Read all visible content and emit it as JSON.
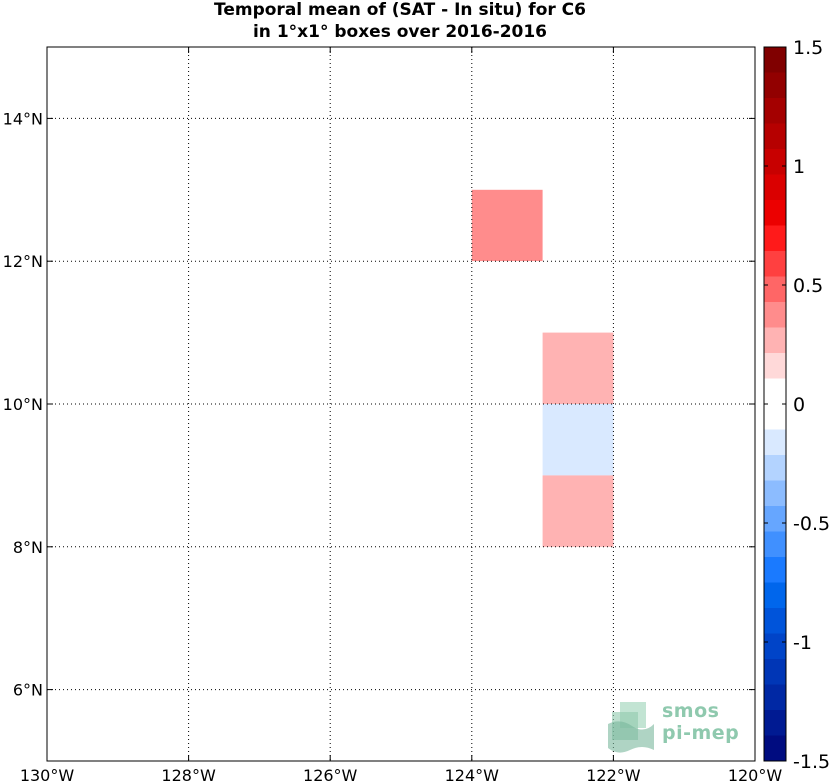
{
  "chart_data": {
    "type": "heatmap",
    "title_line1": "Temporal mean of (SAT - In situ) for C6",
    "title_line2": "in 1°x1° boxes over 2016-2016",
    "xlim": [
      -130,
      -120
    ],
    "ylim": [
      5,
      15
    ],
    "x_ticks": [
      -130,
      -128,
      -126,
      -124,
      -122,
      -120
    ],
    "x_tick_labels": [
      "130°W",
      "128°W",
      "126°W",
      "124°W",
      "122°W",
      "120°W"
    ],
    "y_ticks": [
      6,
      8,
      10,
      12,
      14
    ],
    "y_tick_labels": [
      "6°N",
      "8°N",
      "10°N",
      "12°N",
      "14°N"
    ],
    "grid": true,
    "cells": [
      {
        "lon": [
          -124,
          -123
        ],
        "lat": [
          12,
          13
        ],
        "value": 0.4
      },
      {
        "lon": [
          -124,
          -123
        ],
        "lat": [
          11,
          12
        ],
        "value": 0.1
      },
      {
        "lon": [
          -123,
          -122
        ],
        "lat": [
          10,
          11
        ],
        "value": 0.25
      },
      {
        "lon": [
          -126,
          -124
        ],
        "lat": [
          9,
          10
        ],
        "value": 0.1
      },
      {
        "lon": [
          -123,
          -122
        ],
        "lat": [
          9,
          10
        ],
        "value": -0.2
      },
      {
        "lon": [
          -125,
          -124
        ],
        "lat": [
          8,
          9
        ],
        "value": -0.1
      },
      {
        "lon": [
          -123,
          -122
        ],
        "lat": [
          8,
          9
        ],
        "value": 0.25
      }
    ],
    "colorbar": {
      "range": [
        -1.5,
        1.5
      ],
      "ticks": [
        1.5,
        1,
        0.5,
        0,
        -0.5,
        -1,
        -1.5
      ],
      "tick_labels": [
        "1.5",
        "1",
        "0.5",
        "0",
        "-0.5",
        "-1",
        "-1.5"
      ],
      "colors_top_to_bottom": [
        "#800000",
        "#920000",
        "#a40000",
        "#b60000",
        "#c80000",
        "#da0000",
        "#ec0000",
        "#ff1a1a",
        "#ff4040",
        "#ff6666",
        "#ff8c8c",
        "#ffb3b3",
        "#ffd9d9",
        "#ffffff",
        "#ffffff",
        "#d9e9ff",
        "#b3d3ff",
        "#8cbcff",
        "#66a6ff",
        "#4090ff",
        "#1a7aff",
        "#0066ec",
        "#0054da",
        "#0044c8",
        "#0036b6",
        "#0028a4",
        "#001a92",
        "#000c80"
      ]
    },
    "logo": {
      "line1": "smos",
      "line2": "pi-mep"
    }
  }
}
